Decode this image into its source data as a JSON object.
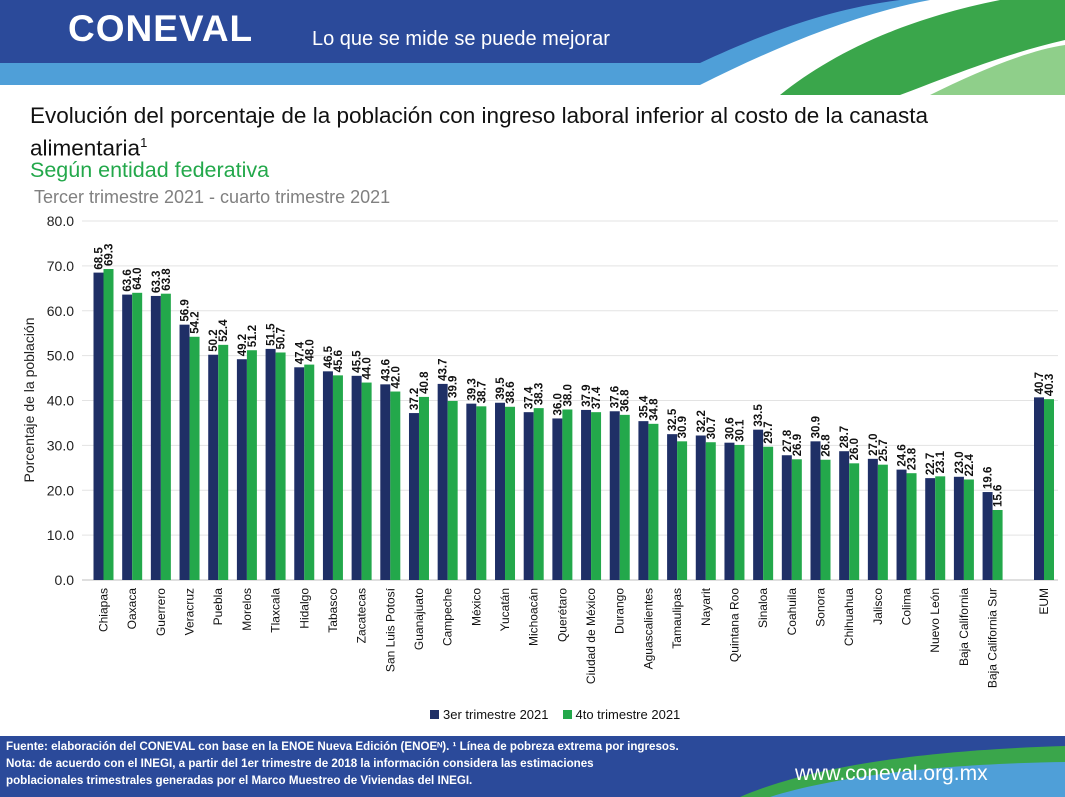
{
  "header": {
    "logo_text": "CONEVAL",
    "slogan": "Lo que se mide se puede mejorar"
  },
  "title": {
    "main": "Evolución del porcentaje de la población con ingreso laboral inferior al costo de la canasta alimentaria",
    "footnote_mark": "1",
    "subtitle": "Según entidad federativa",
    "period": "Tercer trimestre 2021 - cuarto trimestre 2021"
  },
  "colors": {
    "series1": "#1f2f66",
    "series2": "#23a84b",
    "header_blue": "#2b4a9a",
    "header_light": "#4f9fd8",
    "header_green": "#3aa64b",
    "title_green": "#23a84b"
  },
  "chart_data": {
    "type": "bar",
    "ylabel": "Porcentaje de la población",
    "ylim": [
      0,
      80
    ],
    "yticks": [
      "0.0",
      "10.0",
      "20.0",
      "30.0",
      "40.0",
      "50.0",
      "60.0",
      "70.0",
      "80.0"
    ],
    "grid": true,
    "legend_position": "bottom",
    "categories": [
      "Chiapas",
      "Oaxaca",
      "Guerrero",
      "Veracruz",
      "Puebla",
      "Morelos",
      "Tlaxcala",
      "Hidalgo",
      "Tabasco",
      "Zacatecas",
      "San Luis Potosí",
      "Guanajuato",
      "Campeche",
      "México",
      "Yucatán",
      "Michoacán",
      "Querétaro",
      "Ciudad de México",
      "Durango",
      "Aguascalientes",
      "Tamaulipas",
      "Nayarit",
      "Quintana Roo",
      "Sinaloa",
      "Coahuila",
      "Sonora",
      "Chihuahua",
      "Jalisco",
      "Colima",
      "Nuevo León",
      "Baja California",
      "Baja California Sur",
      "EUM"
    ],
    "series": [
      {
        "name": "3er trimestre 2021",
        "values": [
          68.5,
          63.6,
          63.3,
          56.9,
          50.2,
          49.2,
          51.5,
          47.4,
          46.5,
          45.5,
          43.6,
          37.2,
          43.7,
          39.3,
          39.5,
          37.4,
          36.0,
          37.9,
          37.6,
          35.4,
          32.5,
          32.2,
          30.6,
          33.5,
          27.8,
          30.9,
          28.7,
          27.0,
          24.6,
          22.7,
          23.0,
          19.6,
          40.7
        ],
        "labels": [
          "68.5",
          "63.6",
          "63.3",
          "56.9",
          "50.2",
          "49.2",
          "51.5",
          "47.4",
          "46.5",
          "45.5",
          "43.6",
          "37.2",
          "43.7",
          "39.3",
          "39.5",
          "37.4",
          "36.0",
          "37.9",
          "37.6",
          "35.4",
          "32.5",
          "32.2",
          "30.6",
          "33.5",
          "27.8",
          "30.9",
          "28.7",
          "27.0",
          "24.6",
          "22.7",
          "23.0",
          "19.6",
          "40.7"
        ]
      },
      {
        "name": "4to trimestre 2021",
        "values": [
          69.3,
          64.0,
          63.8,
          54.2,
          52.4,
          51.2,
          50.7,
          48.0,
          45.6,
          44.0,
          42.0,
          40.8,
          39.9,
          38.7,
          38.6,
          38.3,
          38.0,
          37.4,
          36.8,
          34.8,
          30.9,
          30.7,
          30.1,
          29.7,
          26.9,
          26.8,
          26.0,
          25.7,
          23.8,
          23.1,
          22.4,
          15.6,
          40.3
        ],
        "labels": [
          "69.3",
          "64.0",
          "63.8",
          "54.2",
          "52.4",
          "51.2",
          "50.7",
          "48.0",
          "45.6",
          "44.0",
          "42.0",
          "40.8",
          "39.9",
          "38.7",
          "38.6",
          "38.3",
          "38.0",
          "37.4",
          "36.8",
          "34.8",
          "30.9",
          "30.7",
          "30.1",
          "29.7",
          "26.9",
          "26.8",
          "26.0",
          "25.7",
          "23.8",
          "23.1",
          "22.4",
          "15.6",
          "40.3"
        ]
      }
    ]
  },
  "footer": {
    "note1": "Fuente: elaboración del CONEVAL con base en la ENOE Nueva Edición (ENOEᴺ). ¹ Línea de pobreza extrema por ingresos.",
    "note2": "Nota: de acuerdo con el INEGI, a partir del 1er trimestre de 2018 la información considera las estimaciones",
    "note3": "poblacionales trimestrales generadas por el Marco Muestreo de Viviendas del INEGI.",
    "website": "www.coneval.org.mx"
  }
}
